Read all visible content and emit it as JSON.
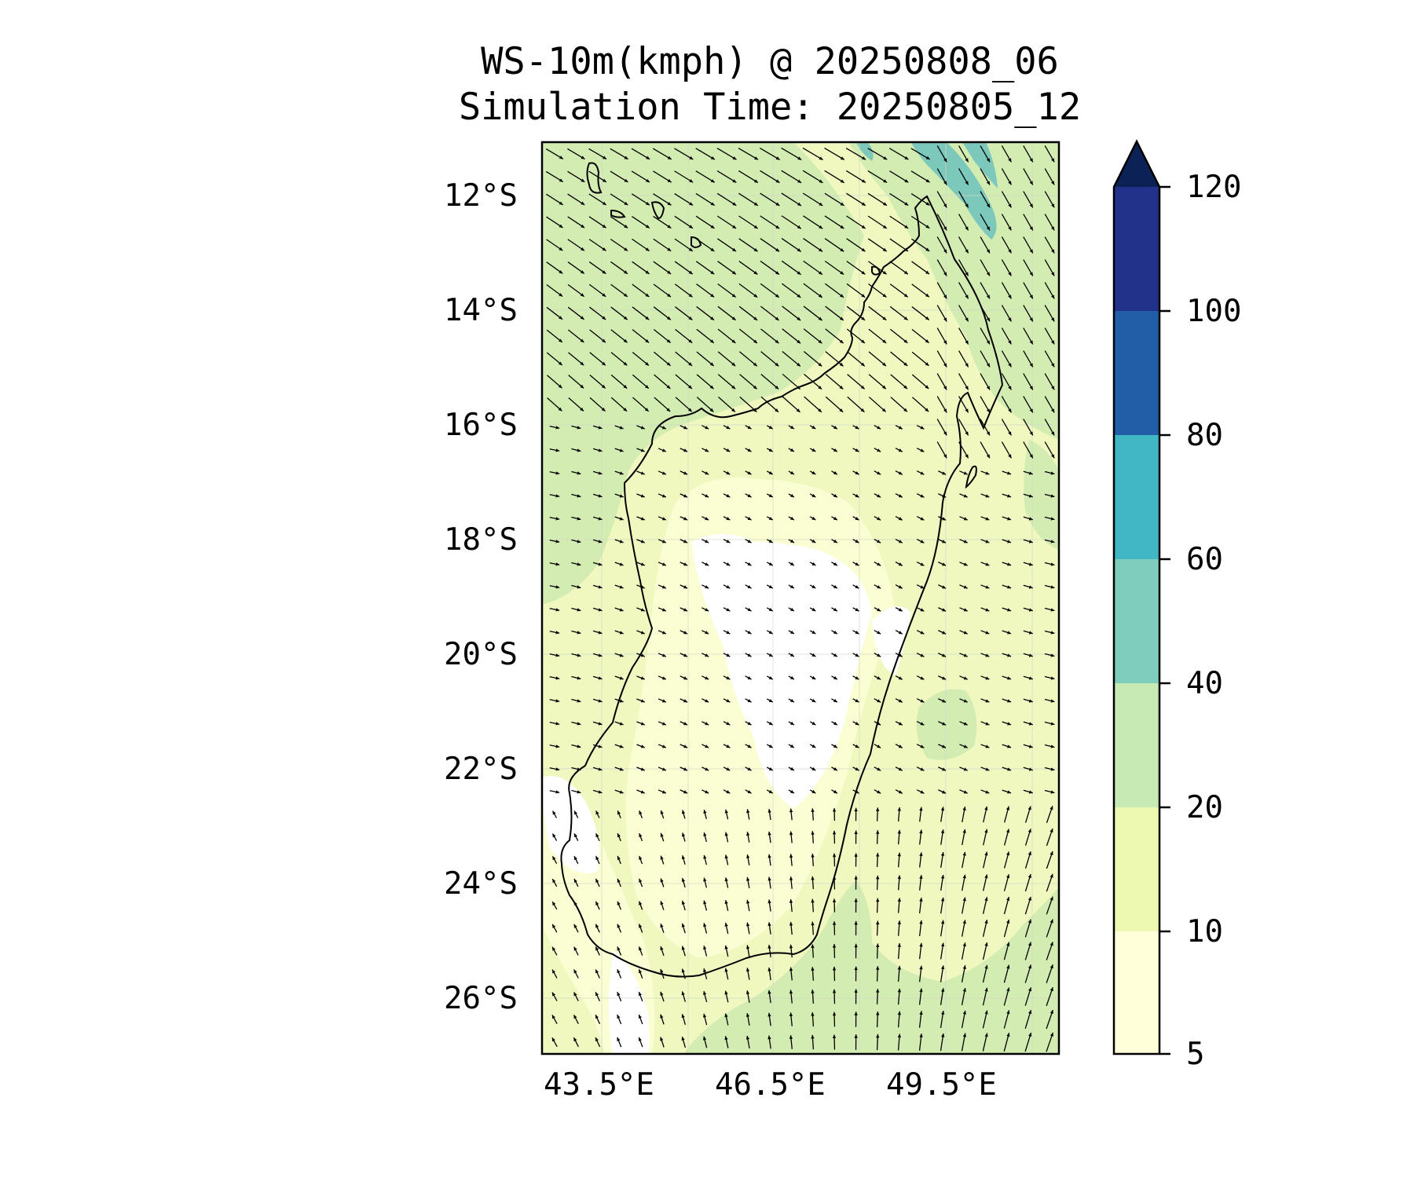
{
  "title": {
    "line1": "WS-10m(kmph) @ 20250808_06",
    "line2": "Simulation Time: 20250805_12"
  },
  "map": {
    "lat_labels": [
      "12°S",
      "14°S",
      "16°S",
      "18°S",
      "20°S",
      "22°S",
      "24°S",
      "26°S"
    ],
    "lon_labels": [
      "43.5°E",
      "46.5°E",
      "49.5°E"
    ],
    "gridlines": true,
    "coastline": "Madagascar",
    "vector_field": "10 m wind direction arrows"
  },
  "colorbar": {
    "levels": [
      "5",
      "10",
      "20",
      "40",
      "60",
      "80",
      "100",
      "120"
    ],
    "extend": "max",
    "colors": [
      "#ffffd9",
      "#edf8b1",
      "#c7e9b4",
      "#7fcdbb",
      "#41b6c4",
      "#1d91c0",
      "#225ea8",
      "#0c2c84"
    ]
  },
  "colors": {
    "calm": "#ffffff",
    "band_5_10": "#fbfdd3",
    "band_10_20": "#f0f8c0",
    "band_20_40": "#d3ecb2",
    "band_40_60": "#7cc9bc"
  }
}
